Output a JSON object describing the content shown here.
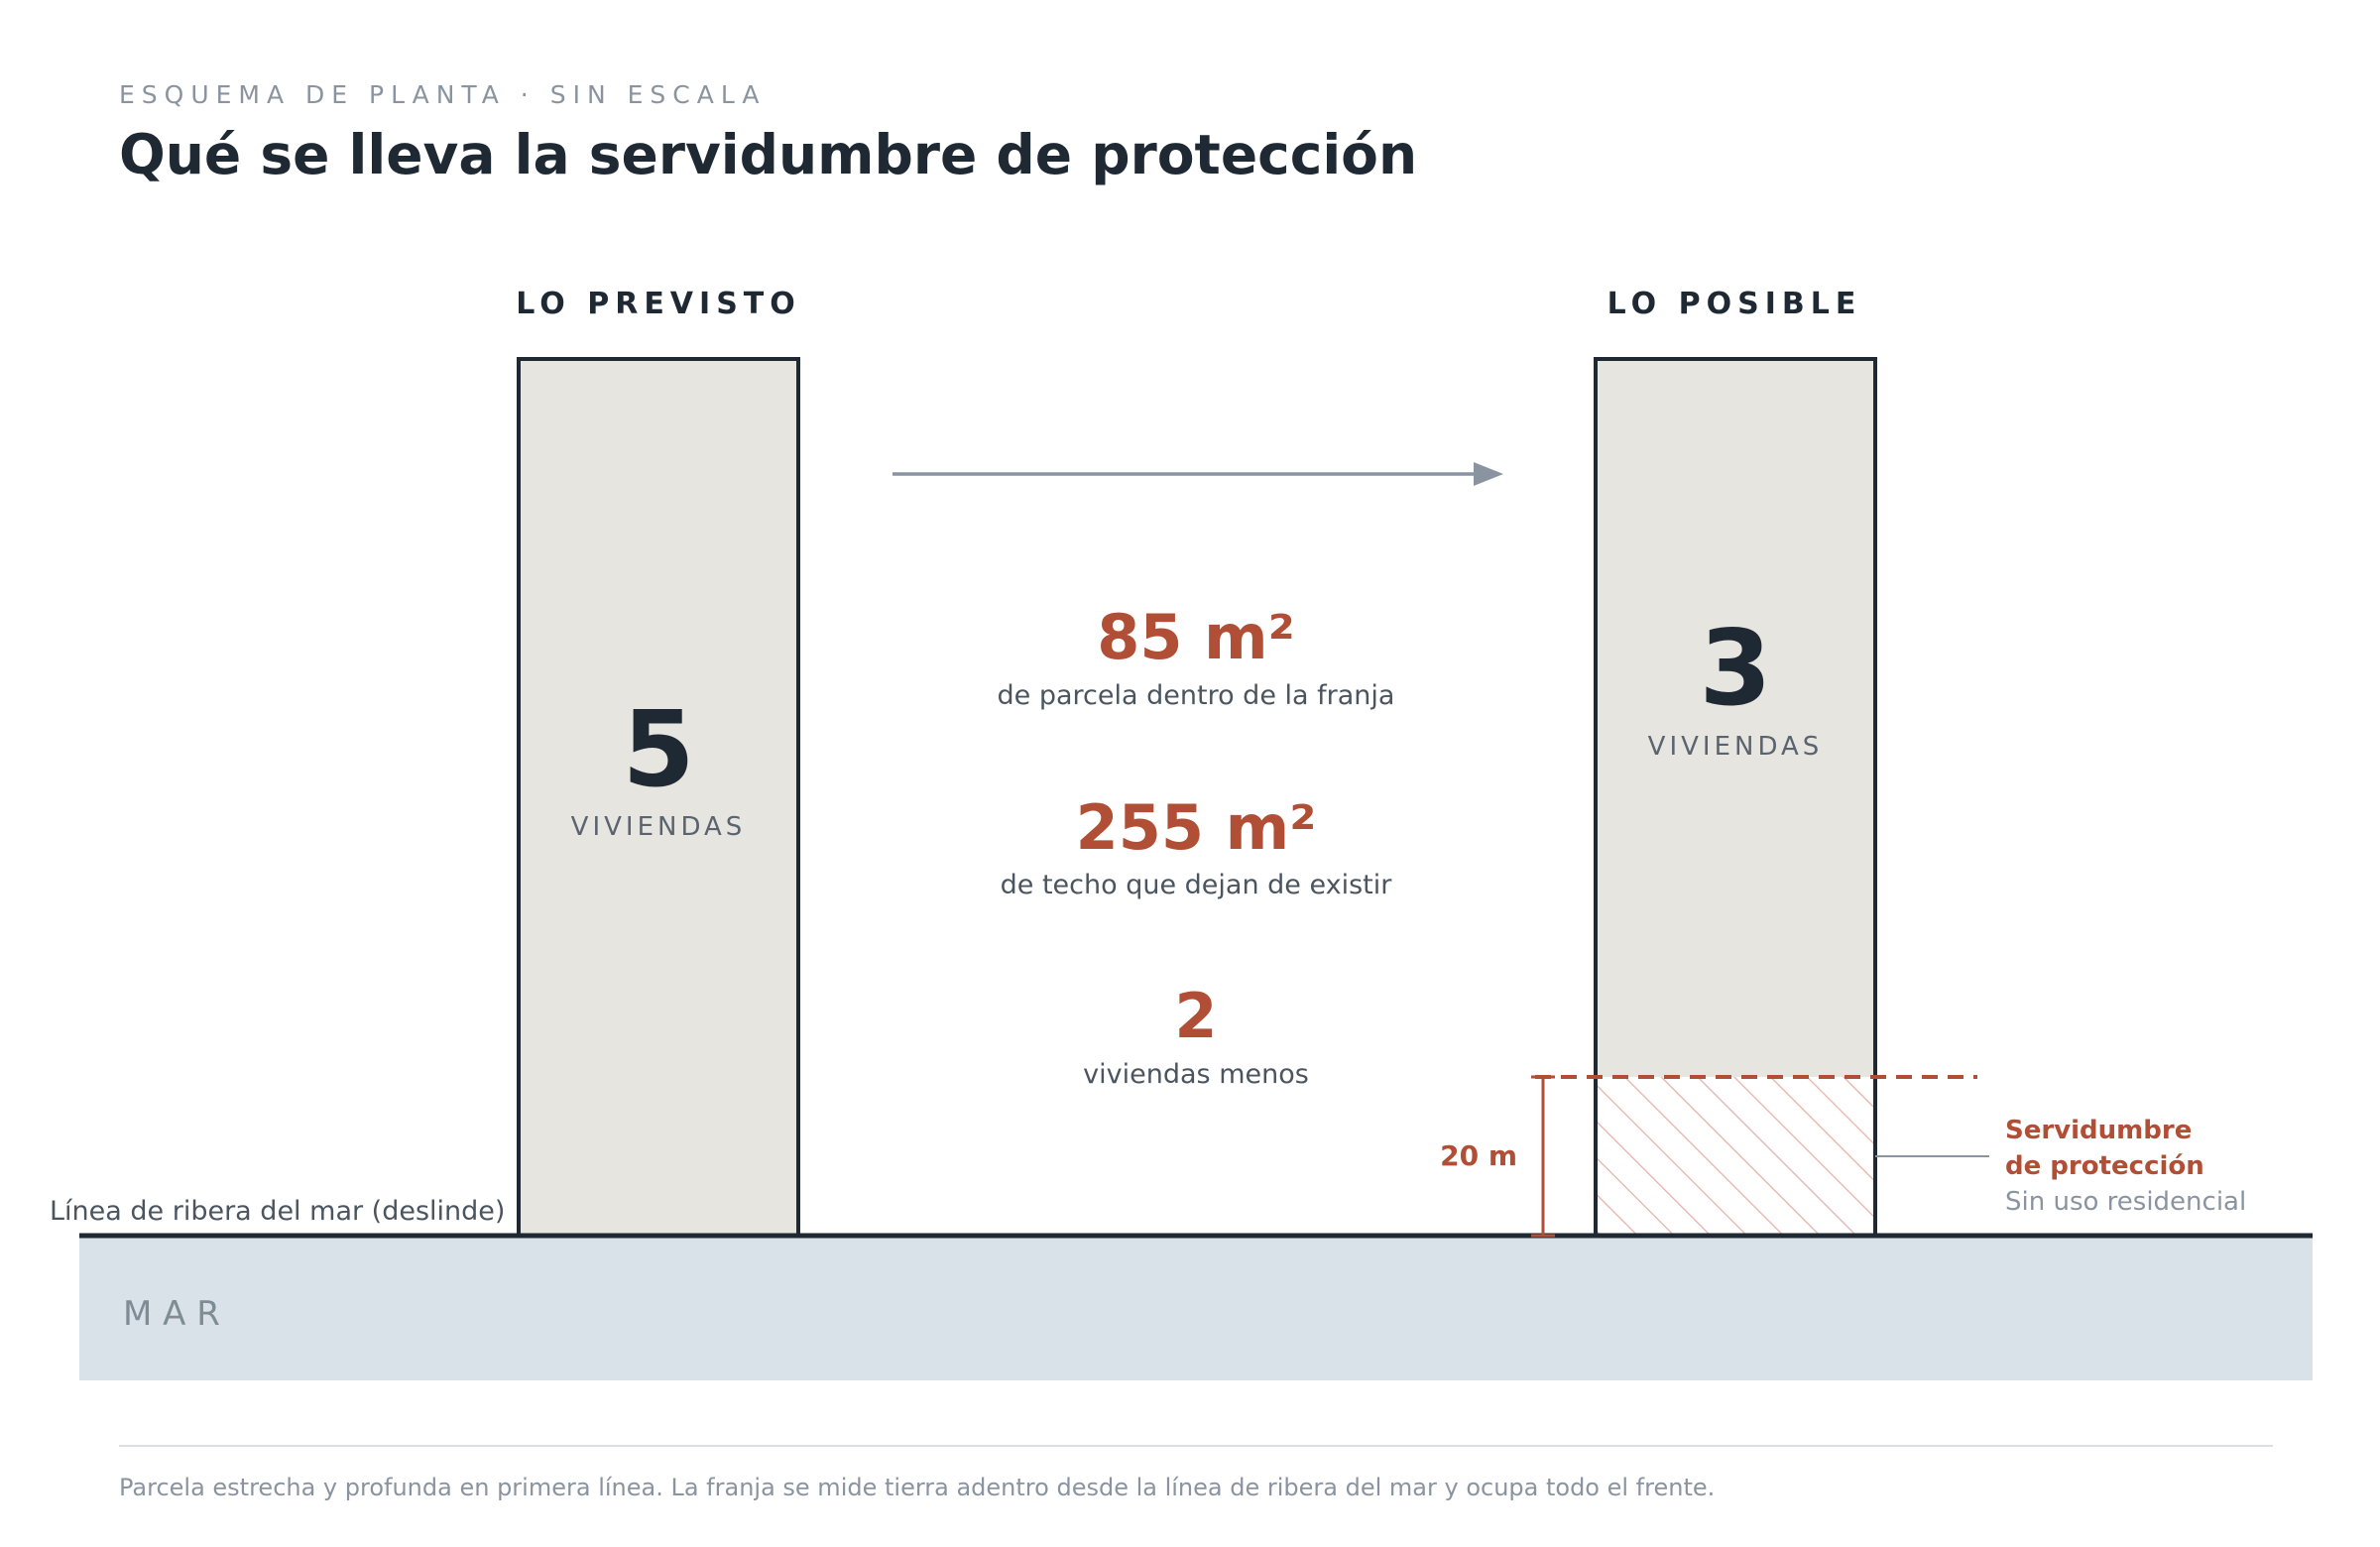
{
  "header": {
    "kicker": "ESQUEMA DE PLANTA · SIN ESCALA",
    "title": "Qué se lleva la servidumbre de protección"
  },
  "left_plot": {
    "heading": "LO PREVISTO",
    "count": "5",
    "unit": "VIVIENDAS"
  },
  "right_plot": {
    "heading": "LO POSIBLE",
    "count": "3",
    "unit": "VIVIENDAS"
  },
  "stats": [
    {
      "value": "85 m²",
      "label": "de parcela dentro de la franja"
    },
    {
      "value": "255 m²",
      "label": "de techo que dejan de existir"
    },
    {
      "value": "2",
      "label": "viviendas menos"
    }
  ],
  "zone": {
    "depth_label": "20 m",
    "title_line1": "Servidumbre",
    "title_line2": "de protección",
    "note": "Sin uso residencial"
  },
  "shoreline_label": "Línea de ribera del mar (deslinde)",
  "sea_label": "M A R",
  "footer": "Parcela estrecha y profunda en primera línea. La franja se mide tierra adentro desde la línea de ribera del mar y ocupa todo el frente.",
  "colors": {
    "accent": "#b04e36",
    "ink": "#1f2933",
    "muted": "#8a94a0",
    "plot_fill": "#e6e5e0",
    "sea": "#d9e2e8"
  }
}
